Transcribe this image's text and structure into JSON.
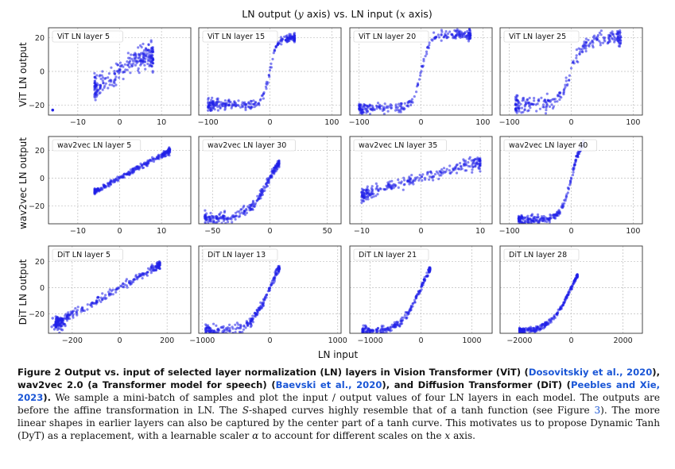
{
  "figure": {
    "title_prefix": "LN output (",
    "title_y": "y",
    "title_mid": " axis) vs. LN input (",
    "title_x": "x",
    "title_suffix": " axis)",
    "x_axis_label": "LN input",
    "row_labels": [
      "ViT LN output",
      "wav2vec LN output",
      "DiT LN output"
    ],
    "colors": {
      "points": "#1f1fe8",
      "grid": "#bdbdbd",
      "frame": "#333333"
    }
  },
  "chart_data": [
    {
      "type": "scatter",
      "title": "ViT LN layer 5",
      "xlim": [
        -17,
        17
      ],
      "ylim": [
        -26,
        26
      ],
      "xticks": [
        -10,
        0,
        10
      ],
      "yticks": [
        -20,
        0,
        20
      ],
      "ytick_labels": [
        "−20",
        "0",
        "20"
      ],
      "xtick_labels": [
        "−10",
        "0",
        "10"
      ],
      "shape": "tanh",
      "params": {
        "xmin": -6,
        "xmax": 8,
        "k": 0.25,
        "a": 9,
        "noise": 3.5,
        "outliers": [
          [
            -16,
            -23
          ]
        ]
      }
    },
    {
      "type": "scatter",
      "title": "ViT LN layer 15",
      "xlim": [
        -115,
        115
      ],
      "ylim": [
        -26,
        26
      ],
      "xticks": [
        -100,
        0,
        100
      ],
      "yticks": [
        -20,
        0,
        20
      ],
      "xtick_labels": [
        "−100",
        "0",
        "100"
      ],
      "shape": "tanh",
      "params": {
        "xmin": -100,
        "xmax": 40,
        "k": 0.09,
        "a": 20,
        "noise": 1.4
      }
    },
    {
      "type": "scatter",
      "title": "ViT LN layer 20",
      "xlim": [
        -115,
        115
      ],
      "ylim": [
        -26,
        26
      ],
      "xticks": [
        -100,
        0,
        100
      ],
      "yticks": [
        -20,
        0,
        20
      ],
      "xtick_labels": [
        "−100",
        "0",
        "100"
      ],
      "shape": "tanh",
      "params": {
        "xmin": -100,
        "xmax": 80,
        "k": 0.07,
        "a": 22,
        "noise": 1.6
      }
    },
    {
      "type": "scatter",
      "title": "ViT LN layer 25",
      "xlim": [
        -115,
        115
      ],
      "ylim": [
        -26,
        26
      ],
      "xticks": [
        -100,
        0,
        100
      ],
      "yticks": [
        -20,
        0,
        20
      ],
      "xtick_labels": [
        "−100",
        "0",
        "100"
      ],
      "shape": "tanh",
      "params": {
        "xmin": -90,
        "xmax": 80,
        "k": 0.05,
        "a": 20,
        "noise": 2.6
      }
    },
    {
      "type": "scatter",
      "title": "wav2vec LN layer 5",
      "xlim": [
        -17,
        17
      ],
      "ylim": [
        -33,
        30
      ],
      "xticks": [
        -10,
        0,
        10
      ],
      "yticks": [
        -20,
        0,
        20
      ],
      "xtick_labels": [
        "−10",
        "0",
        "10"
      ],
      "shape": "linear",
      "params": {
        "xmin": -6,
        "xmax": 12,
        "slope": 1.65,
        "noise": 1.0
      }
    },
    {
      "type": "scatter",
      "title": "wav2vec LN layer 30",
      "xlim": [
        -62,
        62
      ],
      "ylim": [
        -33,
        30
      ],
      "xticks": [
        -50,
        0,
        50
      ],
      "yticks": [
        -20,
        0,
        20
      ],
      "xtick_labels": [
        "−50",
        "0",
        "50"
      ],
      "shape": "tanh",
      "params": {
        "xmin": -57,
        "xmax": 8,
        "k": 0.05,
        "a": 30,
        "noise": 2.0
      }
    },
    {
      "type": "scatter",
      "title": "wav2vec LN layer 35",
      "xlim": [
        -12,
        12
      ],
      "ylim": [
        -33,
        30
      ],
      "xticks": [
        -10,
        0,
        10
      ],
      "yticks": [
        -20,
        0,
        20
      ],
      "xtick_labels": [
        "−10",
        "0",
        "10"
      ],
      "shape": "linear",
      "params": {
        "xmin": -10,
        "xmax": 10,
        "slope": 1.2,
        "noise": 2.5
      }
    },
    {
      "type": "scatter",
      "title": "wav2vec LN layer 40",
      "xlim": [
        -115,
        115
      ],
      "ylim": [
        -33,
        30
      ],
      "xticks": [
        -100,
        0,
        100
      ],
      "yticks": [
        -20,
        0,
        20
      ],
      "xtick_labels": [
        "−100",
        "0",
        "100"
      ],
      "shape": "tanh",
      "params": {
        "xmin": -85,
        "xmax": 20,
        "k": 0.06,
        "a": 30,
        "noise": 1.4
      }
    },
    {
      "type": "scatter",
      "title": "DiT LN layer 5",
      "xlim": [
        -300,
        300
      ],
      "ylim": [
        -35,
        32
      ],
      "xticks": [
        -200,
        0,
        200
      ],
      "yticks": [
        -20,
        0,
        20
      ],
      "xtick_labels": [
        "−200",
        "0",
        "200"
      ],
      "shape": "linear",
      "params": {
        "xmin": -270,
        "xmax": 170,
        "slope": 0.105,
        "noise": 1.7,
        "cluster": [
          -255,
          -27
        ]
      }
    },
    {
      "type": "scatter",
      "title": "DiT LN layer 13",
      "xlim": [
        -1050,
        1050
      ],
      "ylim": [
        -35,
        32
      ],
      "xticks": [
        -1000,
        0,
        1000
      ],
      "yticks": [
        -20,
        0,
        20
      ],
      "xtick_labels": [
        "−1000",
        "0",
        "1000"
      ],
      "shape": "tanh",
      "params": {
        "xmin": -950,
        "xmax": 140,
        "k": 0.0035,
        "a": 34,
        "noise": 2.0
      }
    },
    {
      "type": "scatter",
      "title": "DiT LN layer 21",
      "xlim": [
        -1400,
        1400
      ],
      "ylim": [
        -35,
        32
      ],
      "xticks": [
        -1000,
        0,
        1000
      ],
      "yticks": [
        -20,
        0,
        20
      ],
      "xtick_labels": [
        "−1000",
        "0",
        "1000"
      ],
      "shape": "tanh",
      "params": {
        "xmin": -1150,
        "xmax": 180,
        "k": 0.0025,
        "a": 34,
        "noise": 1.5
      }
    },
    {
      "type": "scatter",
      "title": "DiT LN layer 28",
      "xlim": [
        -2750,
        2750
      ],
      "ylim": [
        -35,
        32
      ],
      "xticks": [
        -2000,
        0,
        2000
      ],
      "yticks": [
        -20,
        0,
        20
      ],
      "xtick_labels": [
        "−2000",
        "0",
        "2000"
      ],
      "shape": "tanh",
      "params": {
        "xmin": -2000,
        "xmax": 240,
        "k": 0.0012,
        "a": 34,
        "noise": 1.0
      }
    }
  ],
  "caption": {
    "label": "Figure 2",
    "bold_text_1": "  Output vs.  input of selected layer normalization (LN) layers in Vision Transformer (ViT) (",
    "cite_1": "Dosovitskiy et al., 2020",
    "bold_text_2": "), wav2vec 2.0 (a Transformer model for speech) (",
    "cite_2": "Baevski et al., 2020",
    "bold_text_3": "), and Diffusion Transformer (DiT) (",
    "cite_3": "Peebles and Xie, 2023",
    "bold_text_4": ").",
    "body_1": " We sample a mini-batch of samples and plot the input / output values of four LN layers in each model. The outputs are before the affine transformation in LN. The ",
    "body_s": "S",
    "body_2": "-shaped curves highly resemble that of a tanh function (see Figure ",
    "cite_4": "3",
    "body_3": "). The more linear shapes in earlier layers can also be captured by the center part of a tanh curve. This motivates us to propose Dynamic Tanh (DyT) as a replacement, with a learnable scaler ",
    "body_alpha": "α",
    "body_4": " to account for different scales on the ",
    "body_x": "x",
    "body_5": " axis."
  }
}
